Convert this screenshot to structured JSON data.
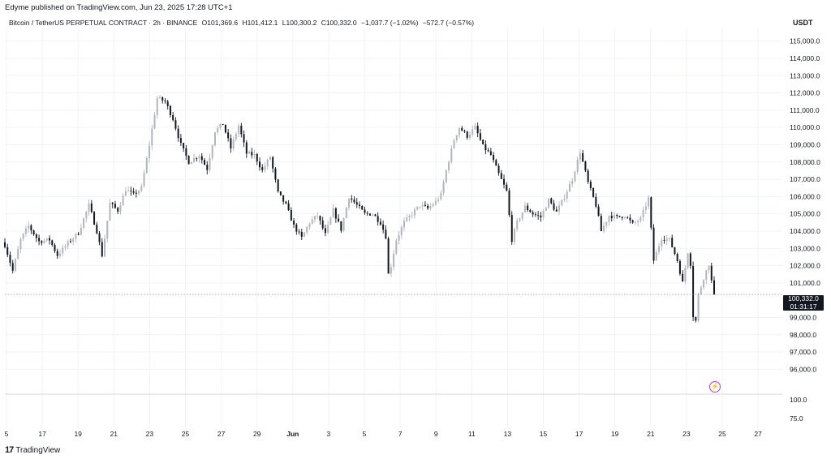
{
  "header": {
    "publisher": "Edyme published on TradingView.com, Jun 23, 2025 17:28 UTC+1",
    "symbol": "Bitcoin / TetherUS PERPETUAL CONTRACT · 2h · BINANCE",
    "open": "O101,369.6",
    "high": "H101,412.1",
    "low": "L100,300.2",
    "close": "C100,332.0",
    "change": "−1,037.7 (−1.02%)",
    "change2": "−572.7 (−0.57%)",
    "currency": "USDT"
  },
  "price_tag": {
    "price": "100,332.0",
    "countdown": "01:31:17"
  },
  "footer": {
    "logo_mark": "17",
    "logo_text": "TradingView"
  },
  "colors": {
    "up": "#b2b5be",
    "down": "#131722",
    "grid": "#f0f3fa",
    "text": "#131722",
    "accent": "#b83bd6"
  },
  "icons": {
    "flash": "lightning-icon"
  },
  "chart_data": {
    "type": "candlestick",
    "y_labels": [
      "115,000.0",
      "114,000.0",
      "113,000.0",
      "112,000.0",
      "111,000.0",
      "110,000.0",
      "109,000.0",
      "108,000.0",
      "107,000.0",
      "106,000.0",
      "105,000.0",
      "104,000.0",
      "103,000.0",
      "102,000.0",
      "101,000.0",
      "99,000.0",
      "98,000.0",
      "97,000.0",
      "96,000.0"
    ],
    "ylim": [
      95500,
      115500
    ],
    "current_price": 100332.0,
    "x_ticks": [
      "5",
      "17",
      "19",
      "21",
      "23",
      "25",
      "27",
      "29",
      "Jun",
      "3",
      "5",
      "7",
      "9",
      "11",
      "13",
      "15",
      "17",
      "19",
      "21",
      "23",
      "25",
      "27"
    ],
    "keypoints": [
      [
        0,
        103200
      ],
      [
        3,
        101700
      ],
      [
        6,
        103500
      ],
      [
        9,
        104300
      ],
      [
        13,
        103400
      ],
      [
        17,
        103500
      ],
      [
        20,
        102600
      ],
      [
        24,
        103300
      ],
      [
        28,
        103900
      ],
      [
        32,
        105500
      ],
      [
        35,
        104000
      ],
      [
        37,
        102600
      ],
      [
        40,
        105600
      ],
      [
        43,
        105200
      ],
      [
        46,
        106400
      ],
      [
        49,
        106100
      ],
      [
        52,
        106500
      ],
      [
        55,
        109000
      ],
      [
        58,
        111700
      ],
      [
        61,
        111500
      ],
      [
        64,
        110500
      ],
      [
        67,
        109000
      ],
      [
        70,
        108000
      ],
      [
        74,
        108400
      ],
      [
        77,
        107600
      ],
      [
        80,
        109800
      ],
      [
        83,
        110200
      ],
      [
        86,
        108800
      ],
      [
        89,
        110100
      ],
      [
        92,
        108500
      ],
      [
        95,
        108400
      ],
      [
        98,
        107500
      ],
      [
        101,
        108300
      ],
      [
        104,
        106200
      ],
      [
        107,
        105500
      ],
      [
        110,
        104300
      ],
      [
        113,
        103600
      ],
      [
        116,
        104500
      ],
      [
        119,
        104900
      ],
      [
        122,
        103800
      ],
      [
        125,
        105200
      ],
      [
        128,
        104100
      ],
      [
        131,
        106000
      ],
      [
        134,
        105500
      ],
      [
        137,
        105000
      ],
      [
        140,
        105000
      ],
      [
        143,
        104500
      ],
      [
        145,
        103700
      ],
      [
        146,
        101500
      ],
      [
        147,
        102000
      ],
      [
        149,
        103500
      ],
      [
        152,
        104500
      ],
      [
        155,
        105000
      ],
      [
        158,
        105500
      ],
      [
        161,
        105300
      ],
      [
        164,
        105700
      ],
      [
        166,
        106100
      ],
      [
        168,
        107500
      ],
      [
        171,
        109300
      ],
      [
        173,
        110000
      ],
      [
        176,
        109500
      ],
      [
        179,
        110000
      ],
      [
        182,
        108900
      ],
      [
        185,
        108400
      ],
      [
        188,
        107300
      ],
      [
        191,
        106300
      ],
      [
        193,
        103500
      ],
      [
        195,
        104500
      ],
      [
        198,
        105400
      ],
      [
        201,
        105000
      ],
      [
        204,
        104800
      ],
      [
        207,
        105800
      ],
      [
        210,
        105100
      ],
      [
        213,
        106000
      ],
      [
        216,
        107000
      ],
      [
        219,
        108600
      ],
      [
        222,
        106800
      ],
      [
        225,
        105500
      ],
      [
        227,
        104000
      ],
      [
        230,
        104900
      ],
      [
        233,
        104800
      ],
      [
        236,
        104900
      ],
      [
        239,
        104400
      ],
      [
        242,
        104700
      ],
      [
        245,
        105900
      ],
      [
        247,
        102300
      ],
      [
        250,
        103600
      ],
      [
        253,
        103500
      ],
      [
        256,
        102300
      ],
      [
        258,
        101000
      ],
      [
        260,
        102800
      ],
      [
        261,
        102100
      ],
      [
        262,
        99100
      ],
      [
        263,
        98800
      ],
      [
        264,
        100300
      ],
      [
        266,
        101300
      ],
      [
        268,
        102100
      ],
      [
        269,
        101100
      ],
      [
        270,
        100332
      ]
    ]
  }
}
